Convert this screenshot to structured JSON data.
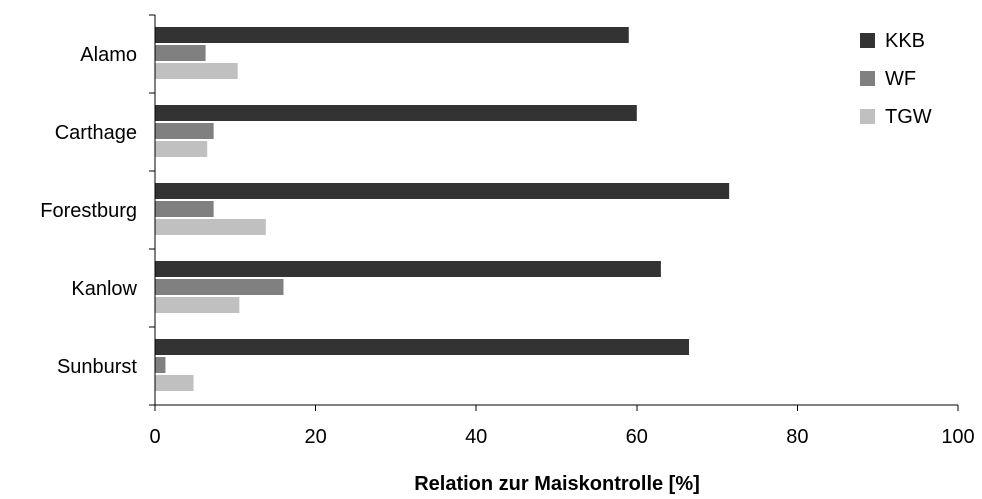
{
  "chart_data": {
    "type": "bar",
    "orientation": "horizontal",
    "title": "",
    "categories": [
      "Alamo",
      "Carthage",
      "Forestburg",
      "Kanlow",
      "Sunburst"
    ],
    "series": [
      {
        "name": "KKB",
        "color": "#333333",
        "values": [
          59,
          60,
          71.5,
          63,
          66.5
        ]
      },
      {
        "name": "WF",
        "color": "#808080",
        "values": [
          6.3,
          7.3,
          7.3,
          16,
          1.3
        ]
      },
      {
        "name": "TGW",
        "color": "#c0c0c0",
        "values": [
          10.3,
          6.5,
          13.8,
          10.5,
          4.8
        ]
      }
    ],
    "xlabel": "Relation zur Maiskontrolle [%]",
    "ylabel": "",
    "xlim": [
      0,
      100
    ],
    "xticks": [
      "0",
      "20",
      "40",
      "60",
      "80",
      "100"
    ],
    "grid": false,
    "legend_position": "top-right"
  }
}
